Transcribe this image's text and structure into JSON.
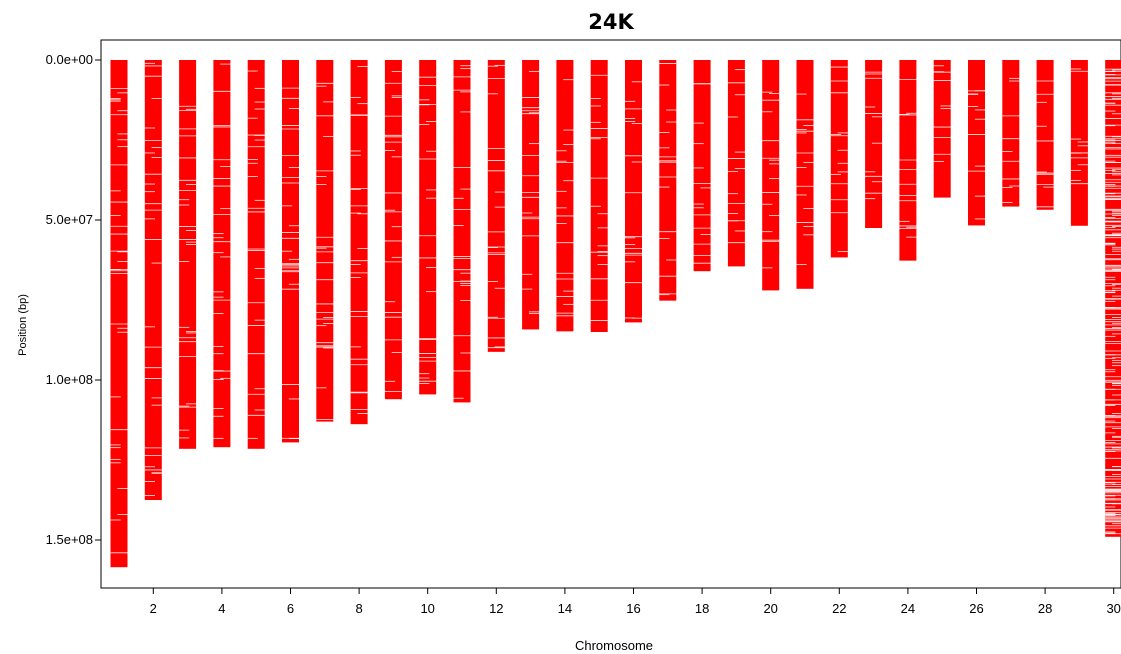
{
  "chart_data": {
    "type": "bar",
    "title": "24K",
    "xlabel": "Chromosome",
    "ylabel": "Position (bp)",
    "y_axis_inverted": true,
    "ylim": [
      0,
      158000000
    ],
    "y_ticks": [
      0,
      50000000,
      100000000,
      150000000
    ],
    "y_tick_labels": [
      "0.0e+00",
      "5.0e+07",
      "1.0e+08",
      "1.5e+08"
    ],
    "x_ticks": [
      2,
      4,
      6,
      8,
      10,
      12,
      14,
      16,
      18,
      20,
      22,
      24,
      26,
      28,
      30
    ],
    "x_tick_labels": [
      "2",
      "4",
      "6",
      "8",
      "10",
      "12",
      "14",
      "16",
      "18",
      "20",
      "22",
      "24",
      "26",
      "28",
      "30"
    ],
    "categories": [
      "1",
      "2",
      "3",
      "4",
      "5",
      "6",
      "7",
      "8",
      "9",
      "10",
      "11",
      "12",
      "13",
      "14",
      "15",
      "16",
      "17",
      "18",
      "19",
      "20",
      "21",
      "22",
      "23",
      "24",
      "25",
      "26",
      "27",
      "28",
      "29",
      "30"
    ],
    "values": [
      158500000,
      137500000,
      121500000,
      121000000,
      121500000,
      119500000,
      113000000,
      113800000,
      106000000,
      104500000,
      107000000,
      91200000,
      84200000,
      84800000,
      85000000,
      82000000,
      75200000,
      66000000,
      64500000,
      72000000,
      71500000,
      61700000,
      52500000,
      62700000,
      43000000,
      51700000,
      45800000,
      46800000,
      51800000,
      149000000
    ],
    "bar_color": "#ff0000",
    "marker_color": "#ffffff",
    "grid": false,
    "legend": "none"
  }
}
